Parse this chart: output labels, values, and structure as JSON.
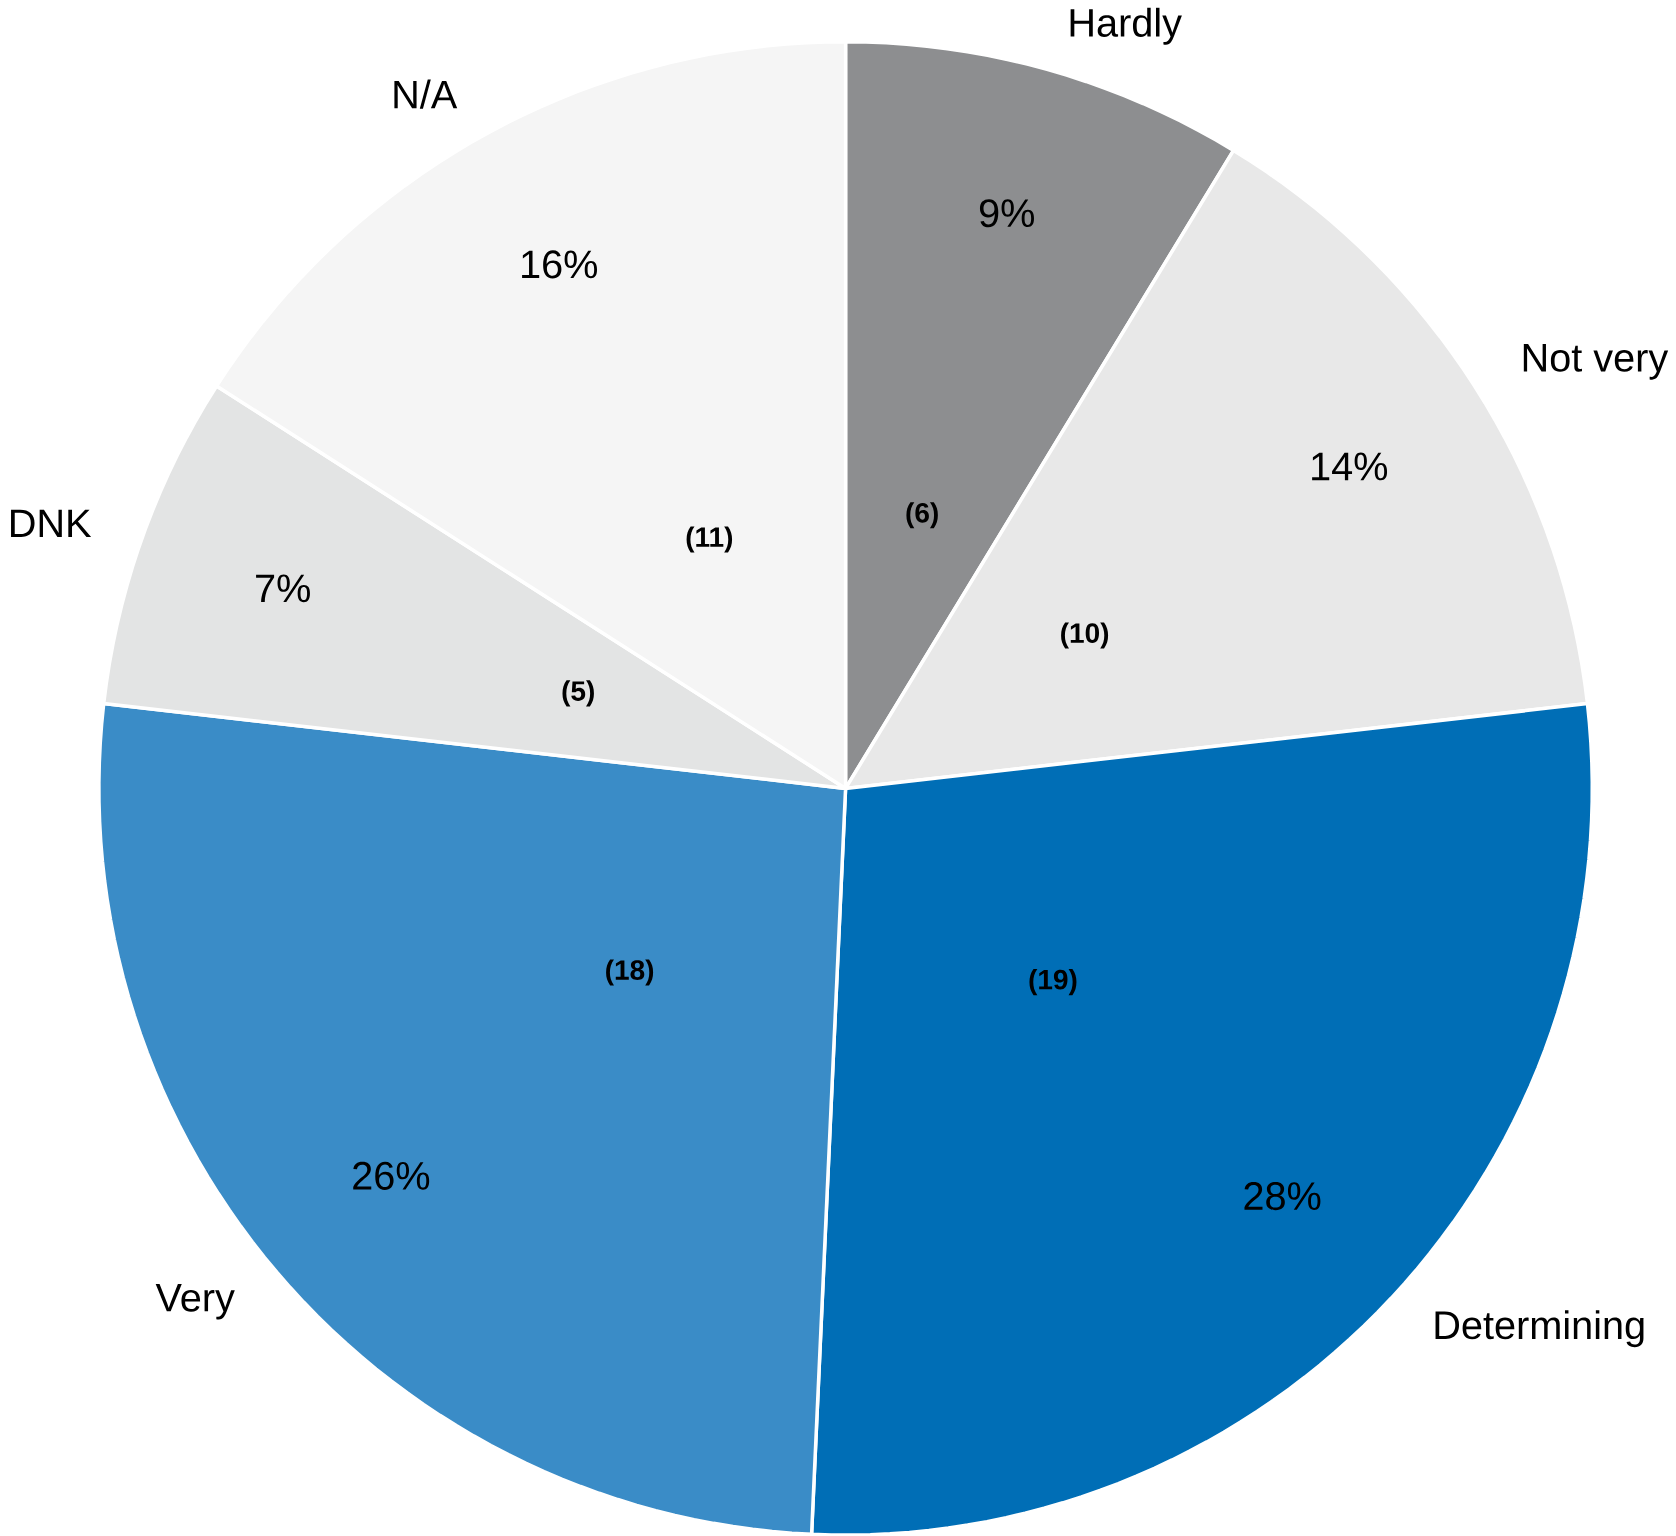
{
  "chart_data": {
    "type": "pie",
    "categories": [
      "Hardly",
      "Not very",
      "Determining",
      "Very",
      "DNK",
      "N/A"
    ],
    "values": [
      6,
      10,
      19,
      18,
      5,
      11
    ],
    "value_labels": [
      "(6)",
      "(10)",
      "(19)",
      "(18)",
      "(5)",
      "(11)"
    ],
    "annotations": [
      "9%",
      "14%",
      "28%",
      "26%",
      "7%",
      "16%"
    ],
    "colors": [
      "#8d8e90",
      "#e8e8e8",
      "#006eb6",
      "#3a8cc7",
      "#e3e4e4",
      "#f5f5f5"
    ]
  }
}
